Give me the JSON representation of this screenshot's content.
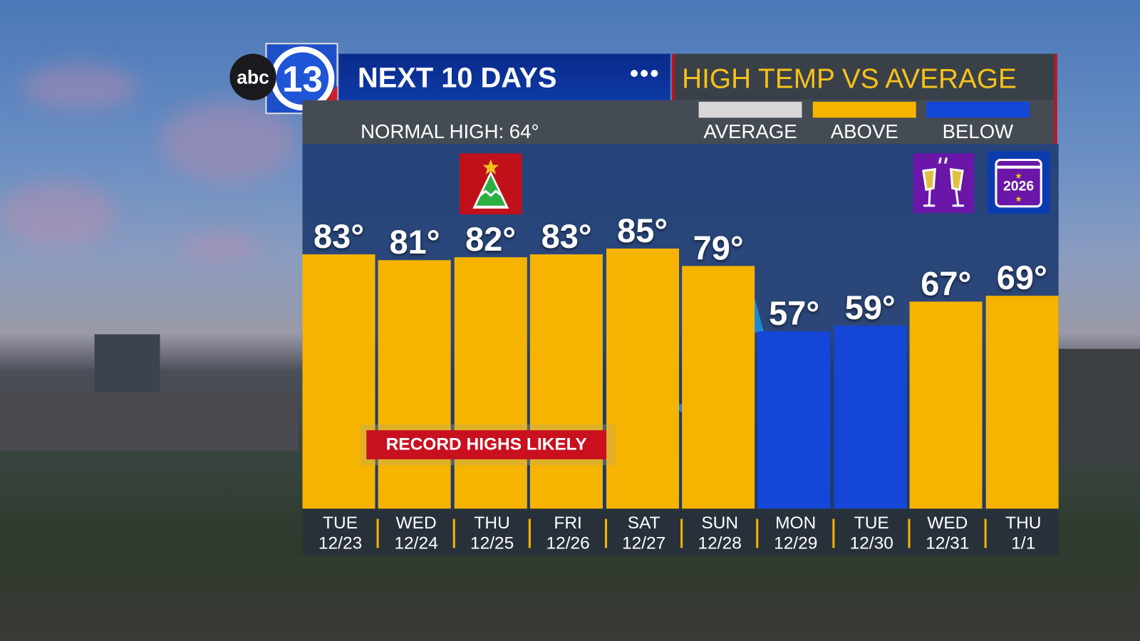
{
  "header": {
    "title": "NEXT 10 DAYS",
    "dots": "•••",
    "right_title": "HIGH TEMP VS AVERAGE",
    "normal_high": "NORMAL HIGH: 64°"
  },
  "legend": [
    {
      "label": "AVERAGE",
      "color": "#d8d8d8"
    },
    {
      "label": "ABOVE",
      "color": "#f6b400"
    },
    {
      "label": "BELOW",
      "color": "#1446d8"
    }
  ],
  "logo": {
    "text": "abc",
    "number": "13"
  },
  "icons": {
    "christmas": "christmas-tree-icon",
    "champagne": "champagne-toast-icon",
    "calendar_year": "2026"
  },
  "annotation": "RECORD HIGHS LIKELY",
  "chart_data": {
    "type": "bar",
    "title": "HIGH TEMP VS AVERAGE",
    "normal_high": 64,
    "categories": [
      [
        "TUE",
        "12/23"
      ],
      [
        "WED",
        "12/24"
      ],
      [
        "THU",
        "12/25"
      ],
      [
        "FRI",
        "12/26"
      ],
      [
        "SAT",
        "12/27"
      ],
      [
        "SUN",
        "12/28"
      ],
      [
        "MON",
        "12/29"
      ],
      [
        "TUE",
        "12/30"
      ],
      [
        "WED",
        "12/31"
      ],
      [
        "THU",
        "1/1"
      ]
    ],
    "values": [
      83,
      81,
      82,
      83,
      85,
      79,
      57,
      59,
      67,
      69
    ],
    "labels": [
      "83°",
      "81°",
      "82°",
      "83°",
      "85°",
      "79°",
      "57°",
      "59°",
      "67°",
      "69°"
    ],
    "status": [
      "above",
      "above",
      "above",
      "above",
      "above",
      "above",
      "below",
      "below",
      "above",
      "above"
    ],
    "colors": {
      "above": "#f6b400",
      "below": "#1446d8",
      "average": "#d8d8d8"
    }
  }
}
